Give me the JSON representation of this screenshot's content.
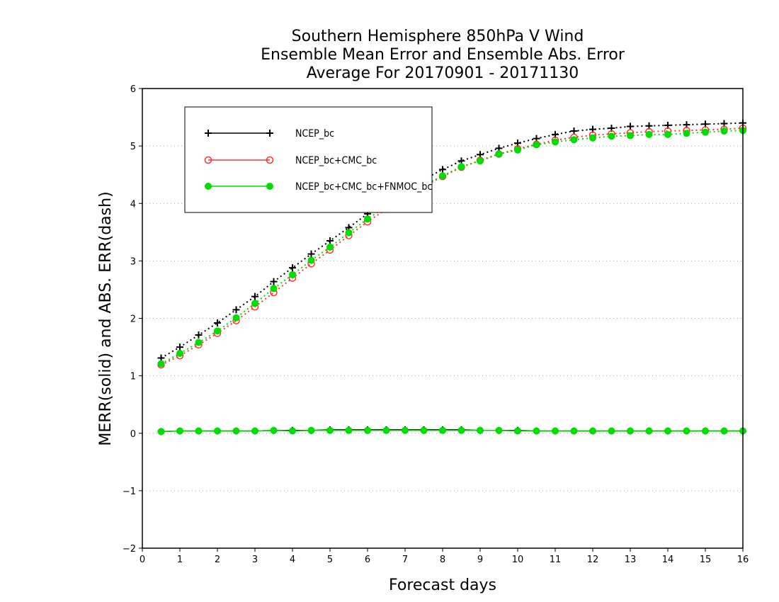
{
  "chart_data": {
    "type": "line",
    "title_lines": [
      "Southern Hemisphere 850hPa V Wind",
      "Ensemble Mean Error and Ensemble Abs. Error",
      "Average For 20170901 - 20171130"
    ],
    "xlabel": "Forecast days",
    "ylabel": "MERR(solid) and ABS. ERR(dash)",
    "xlim": [
      0,
      16
    ],
    "ylim": [
      -2,
      6
    ],
    "x_ticks": [
      "0",
      "1",
      "2",
      "3",
      "4",
      "5",
      "6",
      "7",
      "8",
      "9",
      "10",
      "11",
      "12",
      "13",
      "14",
      "15",
      "16"
    ],
    "y_ticks": [
      "−2",
      "−1",
      "0",
      "1",
      "2",
      "3",
      "4",
      "5",
      "6"
    ],
    "grid": "horizontal dotted",
    "legend_position": "top-left",
    "x": [
      0.5,
      1,
      1.5,
      2,
      2.5,
      3,
      3.5,
      4,
      4.5,
      5,
      5.5,
      6,
      6.5,
      7,
      7.5,
      8,
      8.5,
      9,
      9.5,
      10,
      10.5,
      11,
      11.5,
      12,
      12.5,
      13,
      13.5,
      14,
      14.5,
      15,
      15.5,
      16
    ],
    "series": [
      {
        "name": "NCEP_bc",
        "color": "#000000",
        "marker": "plus",
        "abs_err": [
          1.31,
          1.5,
          1.71,
          1.92,
          2.15,
          2.38,
          2.64,
          2.88,
          3.12,
          3.35,
          3.58,
          3.82,
          4.03,
          4.23,
          4.42,
          4.59,
          4.74,
          4.85,
          4.96,
          5.05,
          5.13,
          5.2,
          5.26,
          5.29,
          5.31,
          5.34,
          5.35,
          5.36,
          5.37,
          5.38,
          5.39,
          5.4
        ],
        "merr": [
          0.03,
          0.04,
          0.04,
          0.04,
          0.04,
          0.04,
          0.05,
          0.05,
          0.05,
          0.06,
          0.06,
          0.06,
          0.06,
          0.06,
          0.06,
          0.06,
          0.06,
          0.05,
          0.05,
          0.05,
          0.04,
          0.04,
          0.04,
          0.04,
          0.04,
          0.04,
          0.04,
          0.04,
          0.04,
          0.04,
          0.04,
          0.04
        ]
      },
      {
        "name": "NCEP_bc+CMC_bc",
        "color": "#ff3333",
        "marker": "open-circle",
        "abs_err": [
          1.19,
          1.35,
          1.54,
          1.74,
          1.96,
          2.2,
          2.45,
          2.7,
          2.95,
          3.19,
          3.44,
          3.68,
          3.9,
          4.1,
          4.3,
          4.47,
          4.63,
          4.75,
          4.86,
          4.95,
          5.03,
          5.1,
          5.15,
          5.19,
          5.21,
          5.23,
          5.25,
          5.26,
          5.27,
          5.28,
          5.29,
          5.31
        ]
      },
      {
        "name": "NCEP_bc+CMC_bc+FNMOC_bc",
        "color": "#00dd00",
        "marker": "filled-circle",
        "abs_err": [
          1.21,
          1.39,
          1.58,
          1.78,
          2.01,
          2.26,
          2.52,
          2.76,
          3.01,
          3.24,
          3.49,
          3.73,
          3.95,
          4.15,
          4.32,
          4.48,
          4.64,
          4.74,
          4.86,
          4.93,
          5.02,
          5.07,
          5.11,
          5.14,
          5.17,
          5.18,
          5.2,
          5.2,
          5.22,
          5.24,
          5.26,
          5.27
        ],
        "merr": [
          0.03,
          0.04,
          0.04,
          0.04,
          0.04,
          0.04,
          0.05,
          0.04,
          0.05,
          0.05,
          0.05,
          0.05,
          0.05,
          0.05,
          0.05,
          0.05,
          0.05,
          0.05,
          0.05,
          0.04,
          0.04,
          0.04,
          0.04,
          0.04,
          0.04,
          0.04,
          0.04,
          0.04,
          0.04,
          0.04,
          0.04,
          0.04
        ]
      }
    ]
  }
}
